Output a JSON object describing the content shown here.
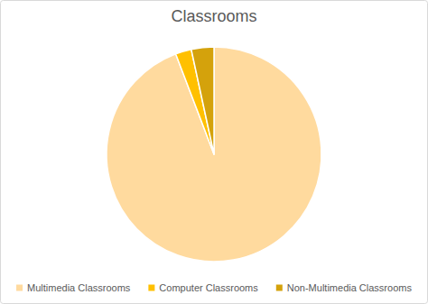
{
  "chart_data": {
    "type": "pie",
    "title": "Classrooms",
    "categories": [
      "Multimedia Classrooms",
      "Computer Classrooms",
      "Non-Multimedia Classrooms"
    ],
    "values": [
      94.2,
      2.4,
      3.4
    ],
    "colors": [
      "#FFDA9E",
      "#FFC000",
      "#D4A20C"
    ],
    "legend": "bottom"
  }
}
